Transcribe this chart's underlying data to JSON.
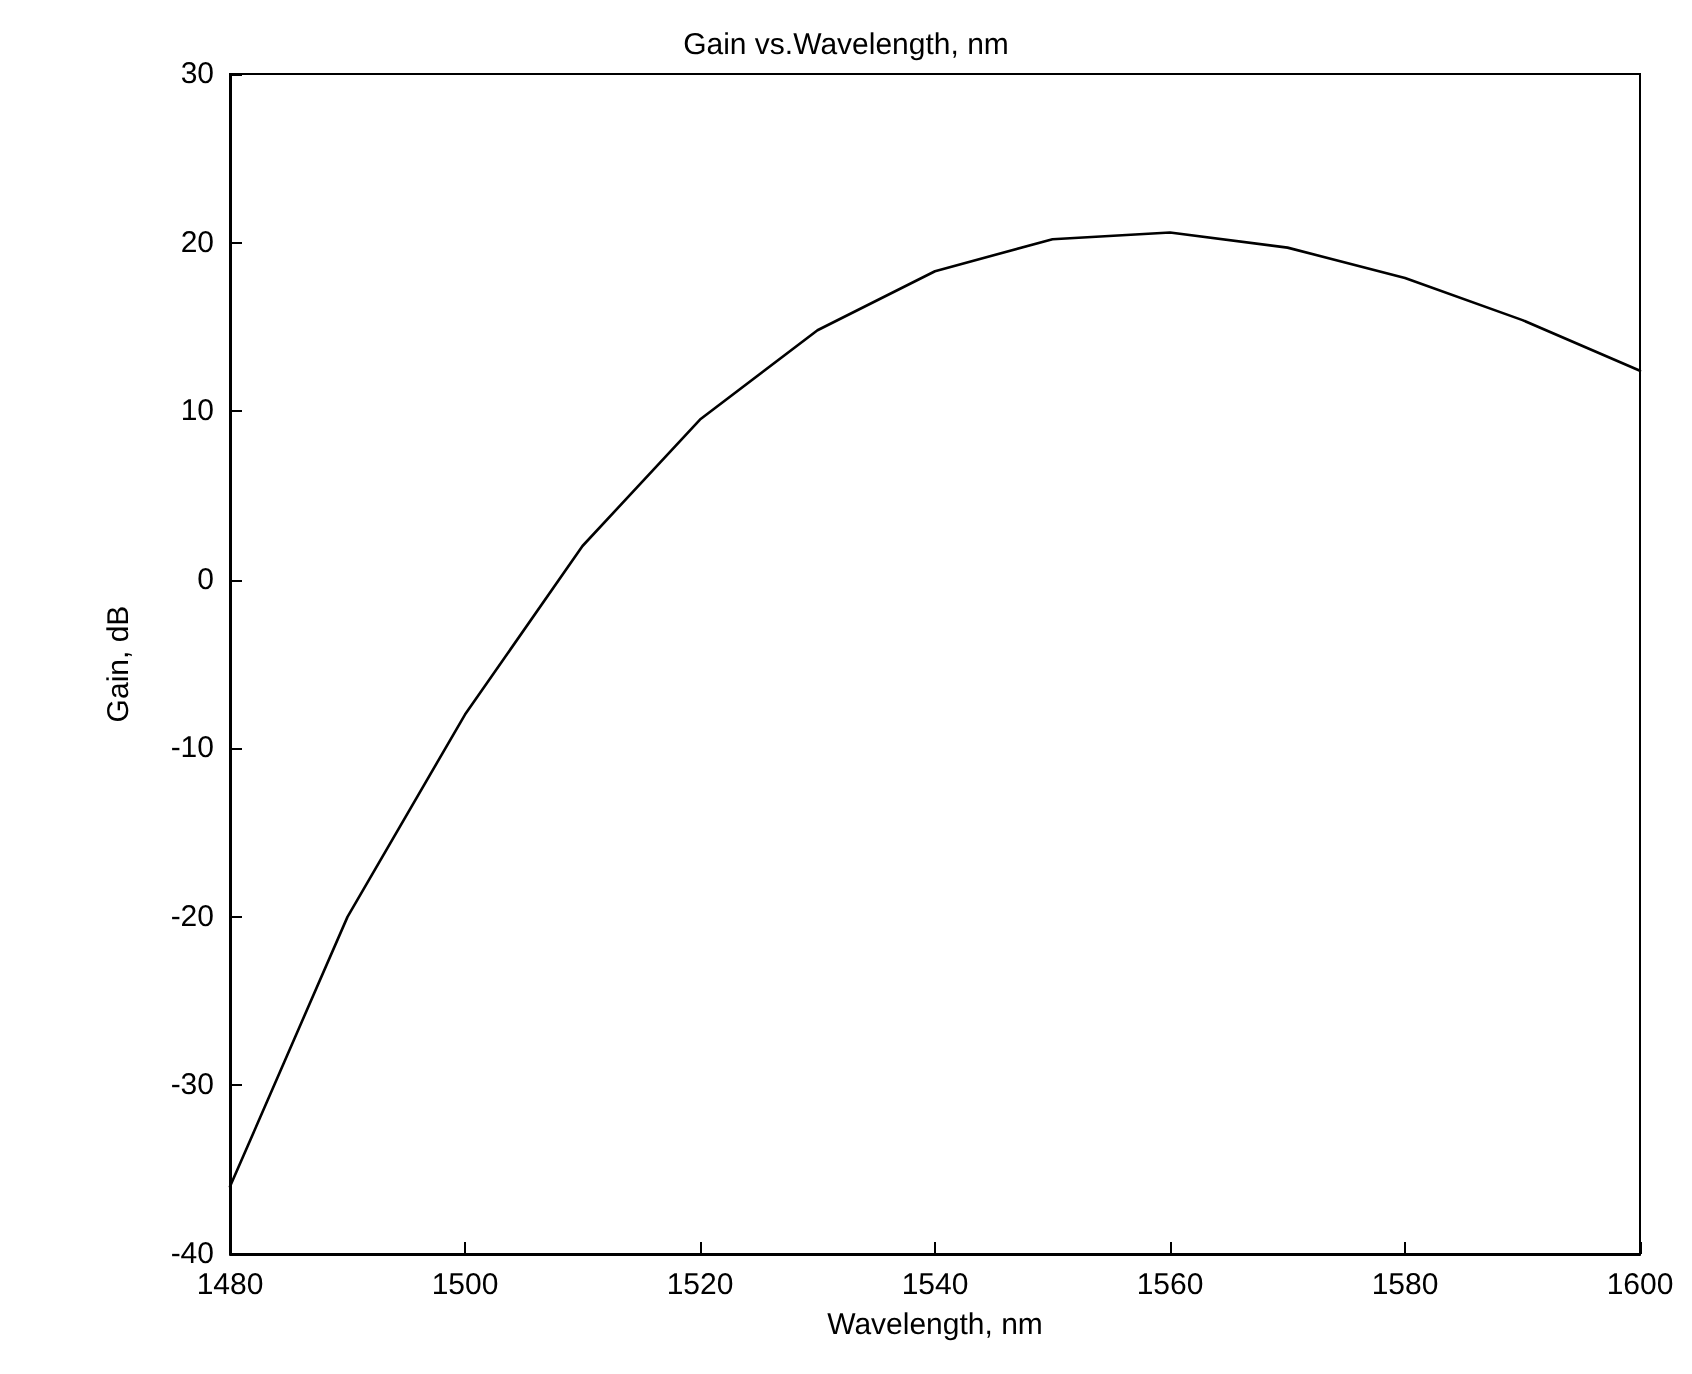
{
  "chart_data": {
    "type": "line",
    "title": "Gain vs.Wavelength, nm",
    "xlabel": "Wavelength, nm",
    "ylabel": "Gain, dB",
    "x": [
      1480,
      1490,
      1500,
      1510,
      1520,
      1530,
      1540,
      1550,
      1560,
      1570,
      1580,
      1590,
      1600
    ],
    "series": [
      {
        "color": "#000000",
        "values": [
          -36,
          -20,
          -8,
          2,
          9.5,
          14.8,
          18.3,
          20.2,
          20.6,
          19.7,
          17.9,
          15.4,
          12.4
        ]
      }
    ],
    "xlim": [
      1480,
      1600
    ],
    "xticks": [
      1480,
      1500,
      1520,
      1540,
      1560,
      1580,
      1600
    ],
    "ylim": [
      -40,
      30
    ],
    "yticks": [
      -40,
      -30,
      -20,
      -10,
      0,
      10,
      20,
      30
    ],
    "grid": false,
    "marker": "none",
    "line_style": "solid"
  }
}
